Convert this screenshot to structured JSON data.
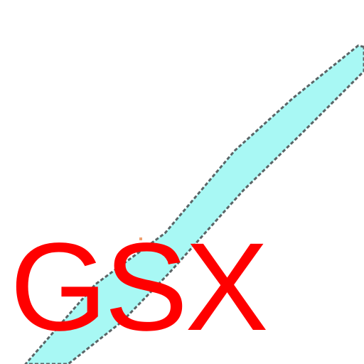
{
  "map": {
    "label": "GSX",
    "colors": {
      "background": "#ffffff",
      "river_fill": "#a8f8f4",
      "river_edge": "#5a6466",
      "label": "#ff0000"
    }
  }
}
